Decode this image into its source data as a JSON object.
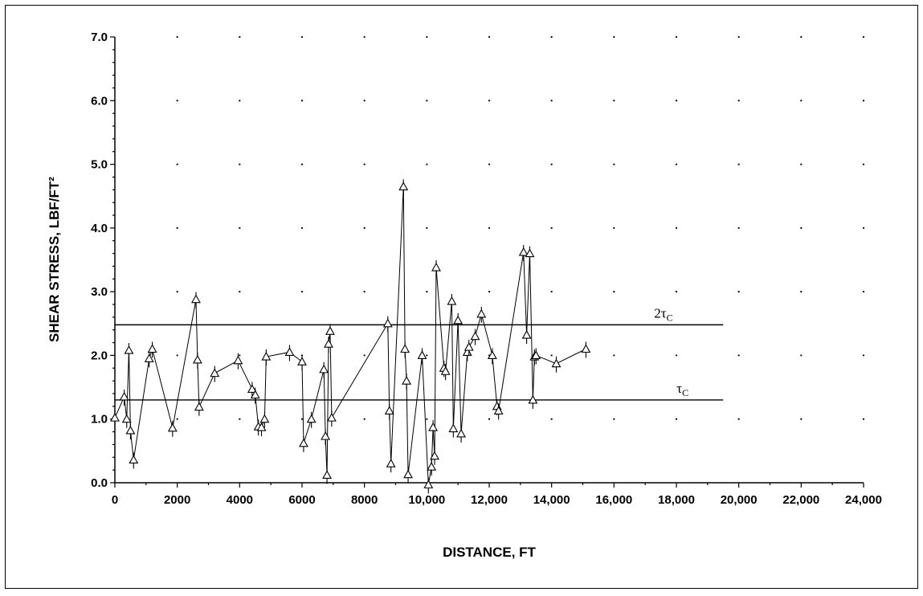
{
  "chart_data": {
    "type": "scatter",
    "title": "",
    "xlabel": "DISTANCE, FT",
    "ylabel": "SHEAR STRESS, LBF/FT²",
    "xlim": [
      0,
      24000
    ],
    "ylim": [
      0,
      7
    ],
    "x_tick_labels": [
      "0",
      "2000",
      "4000",
      "6000",
      "8000",
      "10,000",
      "12,000",
      "14,000",
      "16,000",
      "18,000",
      "20,000",
      "22,000",
      "24,000"
    ],
    "y_tick_labels": [
      "0.0",
      "1.0",
      "2.0",
      "3.0",
      "4.0",
      "5.0",
      "6.0",
      "7.0"
    ],
    "grid": "dotted",
    "reference_lines": [
      {
        "label": "2τ",
        "subscript": "C",
        "y": 2.48,
        "x_range": [
          0,
          19500
        ]
      },
      {
        "label": "τ",
        "subscript": "C",
        "y": 1.3,
        "x_range": [
          0,
          19500
        ]
      }
    ],
    "series": [
      {
        "marker": "triangle-with-error-bar",
        "x": [
          0,
          300,
          380,
          450,
          500,
          600,
          1100,
          1200,
          1850,
          2600,
          2650,
          2700,
          3200,
          3950,
          4400,
          4500,
          4600,
          4700,
          4800,
          4850,
          5600,
          6000,
          6050,
          6300,
          6700,
          6750,
          6800,
          6850,
          6900,
          6950,
          8750,
          8800,
          8850,
          9250,
          9300,
          9350,
          9400,
          9850,
          10050,
          10150,
          10200,
          10250,
          10300,
          10550,
          10600,
          10800,
          10850,
          11000,
          11100,
          11300,
          11350,
          11550,
          11750,
          12100,
          12250,
          12300,
          13100,
          13200,
          13300,
          13400,
          13450,
          13500,
          14150,
          15100
        ],
        "y": [
          1.02,
          1.35,
          1.0,
          2.08,
          0.82,
          0.36,
          1.95,
          2.1,
          0.86,
          2.88,
          1.93,
          1.19,
          1.72,
          1.92,
          1.47,
          1.38,
          0.88,
          0.87,
          1.0,
          1.98,
          2.05,
          1.9,
          0.62,
          1.0,
          1.78,
          0.73,
          0.12,
          2.18,
          2.38,
          1.02,
          2.5,
          1.13,
          0.3,
          4.65,
          2.1,
          1.6,
          0.13,
          2.0,
          -0.03,
          0.25,
          0.87,
          0.42,
          3.38,
          1.8,
          1.75,
          2.85,
          0.85,
          2.55,
          0.77,
          2.05,
          2.13,
          2.3,
          2.65,
          2.0,
          1.2,
          1.13,
          3.62,
          2.32,
          3.6,
          1.3,
          1.98,
          2.0,
          1.87,
          2.1
        ]
      }
    ]
  }
}
